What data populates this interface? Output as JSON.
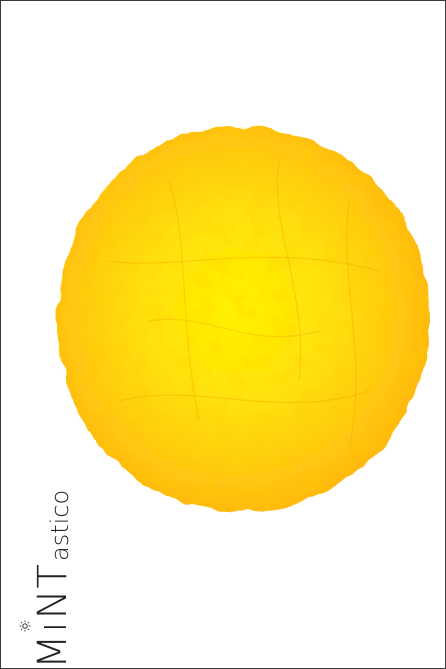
{
  "logo": {
    "part_M": "M",
    "part_i": "ı",
    "part_NT": "NT",
    "part_small": "astico"
  },
  "colors": {
    "sun_center": "#ffee00",
    "sun_mid": "#ffd60a",
    "sun_edge": "#ffb80f",
    "border": "#3a3a3a",
    "text": "#222222"
  },
  "icons": {
    "logo_dot": "sun-bulb-icon"
  }
}
